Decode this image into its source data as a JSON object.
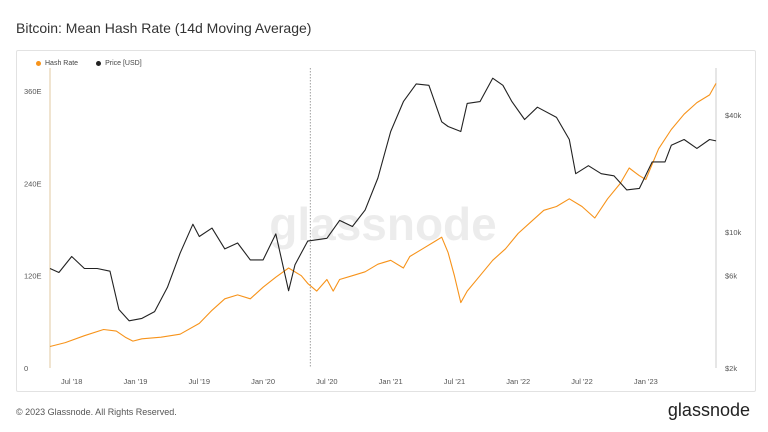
{
  "title": "Bitcoin: Mean Hash Rate (14d Moving Average)",
  "footer": "© 2023 Glassnode. All Rights Reserved.",
  "brand": "glassnode",
  "watermark": "glassnode",
  "colors": {
    "hash": "#f7931a",
    "price": "#222222"
  },
  "chart_data": {
    "type": "line",
    "title": "Bitcoin: Mean Hash Rate (14d Moving Average)",
    "x_labels": [
      "Jul '18",
      "Jan '19",
      "Jul '19",
      "Jan '20",
      "Jul '20",
      "Jan '21",
      "Jul '21",
      "Jan '22",
      "Jul '22",
      "Jan '23"
    ],
    "x_start": 2018.33,
    "x_end": 2023.55,
    "x_ticks": [
      2018.5,
      2019.0,
      2019.5,
      2020.0,
      2020.5,
      2021.0,
      2021.5,
      2022.0,
      2022.5,
      2023.0
    ],
    "left_axis": {
      "ticks": [
        0,
        120,
        240,
        360
      ],
      "labels": [
        "0",
        "120E",
        "240E",
        "360E"
      ],
      "ylim": [
        0,
        390
      ]
    },
    "right_axis": {
      "scale": "log",
      "ticks": [
        2000,
        6000,
        10000,
        40000
      ],
      "labels": [
        "$2k",
        "$6k",
        "$10k",
        "$40k"
      ],
      "ylim": [
        2000,
        70000
      ]
    },
    "marker_date": 2020.37,
    "series": [
      {
        "name": "Hash Rate",
        "axis": "left",
        "points": [
          [
            2018.33,
            28
          ],
          [
            2018.45,
            33
          ],
          [
            2018.6,
            42
          ],
          [
            2018.75,
            50
          ],
          [
            2018.85,
            48
          ],
          [
            2018.92,
            40
          ],
          [
            2018.98,
            35
          ],
          [
            2019.05,
            38
          ],
          [
            2019.2,
            40
          ],
          [
            2019.35,
            44
          ],
          [
            2019.5,
            58
          ],
          [
            2019.6,
            75
          ],
          [
            2019.7,
            90
          ],
          [
            2019.8,
            95
          ],
          [
            2019.9,
            90
          ],
          [
            2020.0,
            105
          ],
          [
            2020.1,
            118
          ],
          [
            2020.2,
            130
          ],
          [
            2020.3,
            120
          ],
          [
            2020.35,
            110
          ],
          [
            2020.42,
            100
          ],
          [
            2020.5,
            115
          ],
          [
            2020.55,
            100
          ],
          [
            2020.6,
            115
          ],
          [
            2020.7,
            120
          ],
          [
            2020.8,
            125
          ],
          [
            2020.9,
            135
          ],
          [
            2021.0,
            140
          ],
          [
            2021.1,
            130
          ],
          [
            2021.15,
            145
          ],
          [
            2021.25,
            155
          ],
          [
            2021.35,
            165
          ],
          [
            2021.4,
            170
          ],
          [
            2021.45,
            150
          ],
          [
            2021.5,
            120
          ],
          [
            2021.55,
            85
          ],
          [
            2021.6,
            100
          ],
          [
            2021.7,
            120
          ],
          [
            2021.8,
            140
          ],
          [
            2021.9,
            155
          ],
          [
            2022.0,
            175
          ],
          [
            2022.1,
            190
          ],
          [
            2022.2,
            205
          ],
          [
            2022.3,
            210
          ],
          [
            2022.4,
            220
          ],
          [
            2022.5,
            210
          ],
          [
            2022.6,
            195
          ],
          [
            2022.7,
            220
          ],
          [
            2022.8,
            240
          ],
          [
            2022.87,
            260
          ],
          [
            2022.95,
            250
          ],
          [
            2023.0,
            245
          ],
          [
            2023.1,
            285
          ],
          [
            2023.2,
            310
          ],
          [
            2023.3,
            330
          ],
          [
            2023.4,
            345
          ],
          [
            2023.5,
            355
          ],
          [
            2023.55,
            370
          ]
        ]
      },
      {
        "name": "Price [USD]",
        "axis": "right",
        "points": [
          [
            2018.33,
            6500
          ],
          [
            2018.4,
            6200
          ],
          [
            2018.5,
            7500
          ],
          [
            2018.6,
            6500
          ],
          [
            2018.7,
            6500
          ],
          [
            2018.8,
            6300
          ],
          [
            2018.87,
            4000
          ],
          [
            2018.95,
            3500
          ],
          [
            2019.05,
            3600
          ],
          [
            2019.15,
            3900
          ],
          [
            2019.25,
            5200
          ],
          [
            2019.35,
            7800
          ],
          [
            2019.45,
            11000
          ],
          [
            2019.5,
            9500
          ],
          [
            2019.6,
            10500
          ],
          [
            2019.7,
            8200
          ],
          [
            2019.8,
            8800
          ],
          [
            2019.9,
            7200
          ],
          [
            2020.0,
            7200
          ],
          [
            2020.1,
            9800
          ],
          [
            2020.2,
            5000
          ],
          [
            2020.25,
            6800
          ],
          [
            2020.35,
            9000
          ],
          [
            2020.5,
            9300
          ],
          [
            2020.6,
            11500
          ],
          [
            2020.7,
            10700
          ],
          [
            2020.8,
            13000
          ],
          [
            2020.9,
            19000
          ],
          [
            2021.0,
            33000
          ],
          [
            2021.1,
            47000
          ],
          [
            2021.2,
            58000
          ],
          [
            2021.3,
            57000
          ],
          [
            2021.4,
            37000
          ],
          [
            2021.45,
            35000
          ],
          [
            2021.55,
            33000
          ],
          [
            2021.6,
            46000
          ],
          [
            2021.7,
            47000
          ],
          [
            2021.8,
            62000
          ],
          [
            2021.88,
            57000
          ],
          [
            2021.95,
            47000
          ],
          [
            2022.05,
            38000
          ],
          [
            2022.15,
            44000
          ],
          [
            2022.3,
            39000
          ],
          [
            2022.4,
            30000
          ],
          [
            2022.45,
            20000
          ],
          [
            2022.55,
            22000
          ],
          [
            2022.65,
            20000
          ],
          [
            2022.75,
            19500
          ],
          [
            2022.85,
            16500
          ],
          [
            2022.95,
            16800
          ],
          [
            2023.05,
            23000
          ],
          [
            2023.15,
            23000
          ],
          [
            2023.2,
            28000
          ],
          [
            2023.3,
            30000
          ],
          [
            2023.4,
            27000
          ],
          [
            2023.5,
            30000
          ],
          [
            2023.55,
            29500
          ]
        ]
      }
    ]
  }
}
